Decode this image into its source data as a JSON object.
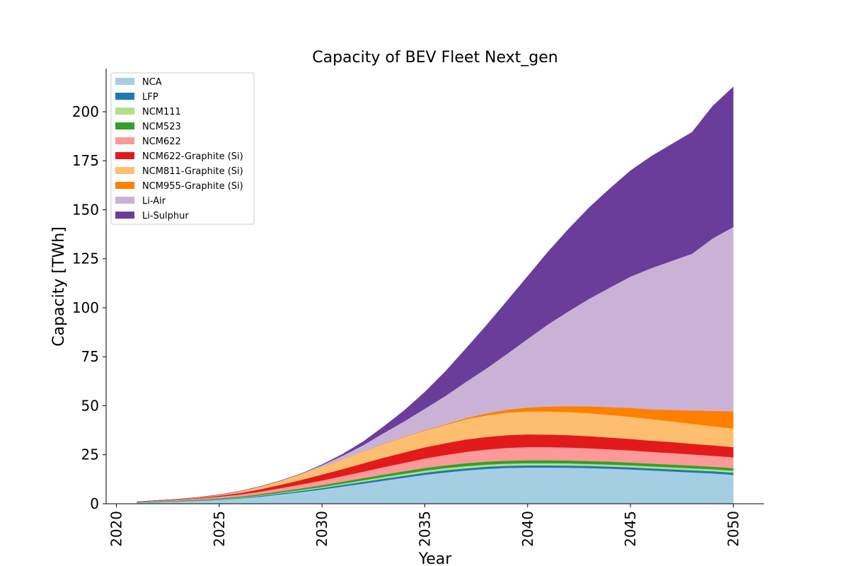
{
  "chart_data": {
    "type": "area",
    "stacked": true,
    "title": "Capacity of BEV Fleet Next_gen",
    "xlabel": "Year",
    "ylabel": "Capacity [TWh]",
    "xlim": [
      2019.5,
      2051.5
    ],
    "ylim": [
      0,
      222
    ],
    "xticks": [
      2020,
      2025,
      2030,
      2035,
      2040,
      2045,
      2050
    ],
    "yticks": [
      0,
      25,
      50,
      75,
      100,
      125,
      150,
      175,
      200
    ],
    "grid": false,
    "legend_position": "top-left",
    "x": [
      2021,
      2022,
      2023,
      2024,
      2025,
      2026,
      2027,
      2028,
      2029,
      2030,
      2031,
      2032,
      2033,
      2034,
      2035,
      2036,
      2037,
      2038,
      2039,
      2040,
      2041,
      2042,
      2043,
      2044,
      2045,
      2046,
      2047,
      2048,
      2049,
      2050
    ],
    "series": [
      {
        "name": "NCA",
        "color": "#a6cee3",
        "values": [
          0.5,
          0.8,
          1.1,
          1.5,
          2.0,
          2.7,
          3.6,
          4.8,
          6.0,
          7.3,
          8.8,
          10.3,
          11.8,
          13.3,
          14.8,
          16.0,
          17.0,
          17.8,
          18.3,
          18.5,
          18.5,
          18.4,
          18.2,
          17.9,
          17.5,
          17.0,
          16.5,
          16.0,
          15.5,
          14.8
        ]
      },
      {
        "name": "LFP",
        "color": "#1f78b4",
        "values": [
          0.1,
          0.1,
          0.1,
          0.2,
          0.2,
          0.3,
          0.4,
          0.5,
          0.6,
          0.7,
          0.8,
          0.9,
          1.0,
          1.0,
          1.1,
          1.1,
          1.1,
          1.1,
          1.1,
          1.1,
          1.1,
          1.1,
          1.1,
          1.1,
          1.1,
          1.1,
          1.1,
          1.1,
          1.1,
          1.1
        ]
      },
      {
        "name": "NCM111",
        "color": "#b2df8a",
        "values": [
          0.1,
          0.1,
          0.1,
          0.1,
          0.2,
          0.2,
          0.3,
          0.4,
          0.5,
          0.6,
          0.7,
          0.8,
          0.9,
          1.0,
          1.0,
          1.1,
          1.1,
          1.1,
          1.1,
          1.1,
          1.1,
          1.1,
          1.0,
          1.0,
          1.0,
          1.0,
          1.0,
          1.0,
          1.0,
          1.0
        ]
      },
      {
        "name": "NCM523",
        "color": "#33a02c",
        "values": [
          0.1,
          0.2,
          0.2,
          0.3,
          0.4,
          0.5,
          0.6,
          0.7,
          0.8,
          0.9,
          1.0,
          1.1,
          1.2,
          1.3,
          1.4,
          1.4,
          1.5,
          1.5,
          1.5,
          1.5,
          1.5,
          1.5,
          1.5,
          1.5,
          1.4,
          1.4,
          1.4,
          1.4,
          1.3,
          1.3
        ]
      },
      {
        "name": "NCM622",
        "color": "#fb9a99",
        "values": [
          0.2,
          0.3,
          0.4,
          0.6,
          0.8,
          1.0,
          1.3,
          1.6,
          2.0,
          2.4,
          2.8,
          3.3,
          3.8,
          4.3,
          4.8,
          5.3,
          5.8,
          6.2,
          6.5,
          6.7,
          6.7,
          6.6,
          6.5,
          6.3,
          6.2,
          6.0,
          5.9,
          5.7,
          5.6,
          5.5
        ]
      },
      {
        "name": "NCM622-Graphite (Si)",
        "color": "#e31a1c",
        "values": [
          0.0,
          0.1,
          0.2,
          0.3,
          0.5,
          0.8,
          1.2,
          1.7,
          2.3,
          3.0,
          3.6,
          4.2,
          4.8,
          5.3,
          5.7,
          6.0,
          6.3,
          6.4,
          6.5,
          6.5,
          6.4,
          6.3,
          6.2,
          6.0,
          5.9,
          5.7,
          5.6,
          5.4,
          5.3,
          5.2
        ]
      },
      {
        "name": "NCM811-Graphite (Si)",
        "color": "#fdbf6f",
        "values": [
          0.0,
          0.1,
          0.2,
          0.3,
          0.5,
          0.9,
          1.4,
          2.1,
          3.0,
          4.0,
          5.0,
          6.0,
          7.0,
          7.8,
          8.5,
          9.3,
          10.3,
          11.0,
          11.5,
          11.7,
          11.8,
          11.8,
          11.7,
          11.5,
          11.3,
          11.0,
          10.6,
          10.2,
          9.8,
          9.5
        ]
      },
      {
        "name": "NCM955-Graphite (Si)",
        "color": "#ff7f00",
        "values": [
          0.0,
          0.0,
          0.0,
          0.0,
          0.0,
          0.0,
          0.0,
          0.0,
          0.0,
          0.0,
          0.0,
          0.0,
          0.1,
          0.1,
          0.2,
          0.3,
          0.6,
          1.0,
          1.5,
          2.0,
          2.5,
          3.0,
          3.5,
          4.0,
          4.5,
          5.0,
          5.8,
          6.8,
          7.8,
          8.8
        ]
      },
      {
        "name": "Li-Air",
        "color": "#cab2d6",
        "values": [
          0.0,
          0.0,
          0.0,
          0.0,
          0.0,
          0.0,
          0.0,
          0.0,
          0.2,
          0.8,
          1.8,
          3.3,
          5.5,
          8.0,
          11.0,
          14.5,
          18.5,
          23.0,
          28.5,
          35.0,
          42.0,
          48.5,
          55.0,
          61.0,
          67.0,
          72.0,
          76.0,
          80.0,
          88.0,
          94.0
        ]
      },
      {
        "name": "Li-Sulphur",
        "color": "#6a3d9a",
        "values": [
          0.0,
          0.0,
          0.0,
          0.0,
          0.0,
          0.0,
          0.0,
          0.0,
          0.0,
          0.3,
          0.8,
          1.8,
          3.3,
          5.5,
          8.5,
          12.5,
          17.0,
          22.0,
          27.0,
          32.0,
          37.0,
          42.0,
          46.5,
          50.5,
          54.0,
          57.0,
          59.5,
          62.0,
          67.5,
          71.5
        ]
      }
    ]
  }
}
